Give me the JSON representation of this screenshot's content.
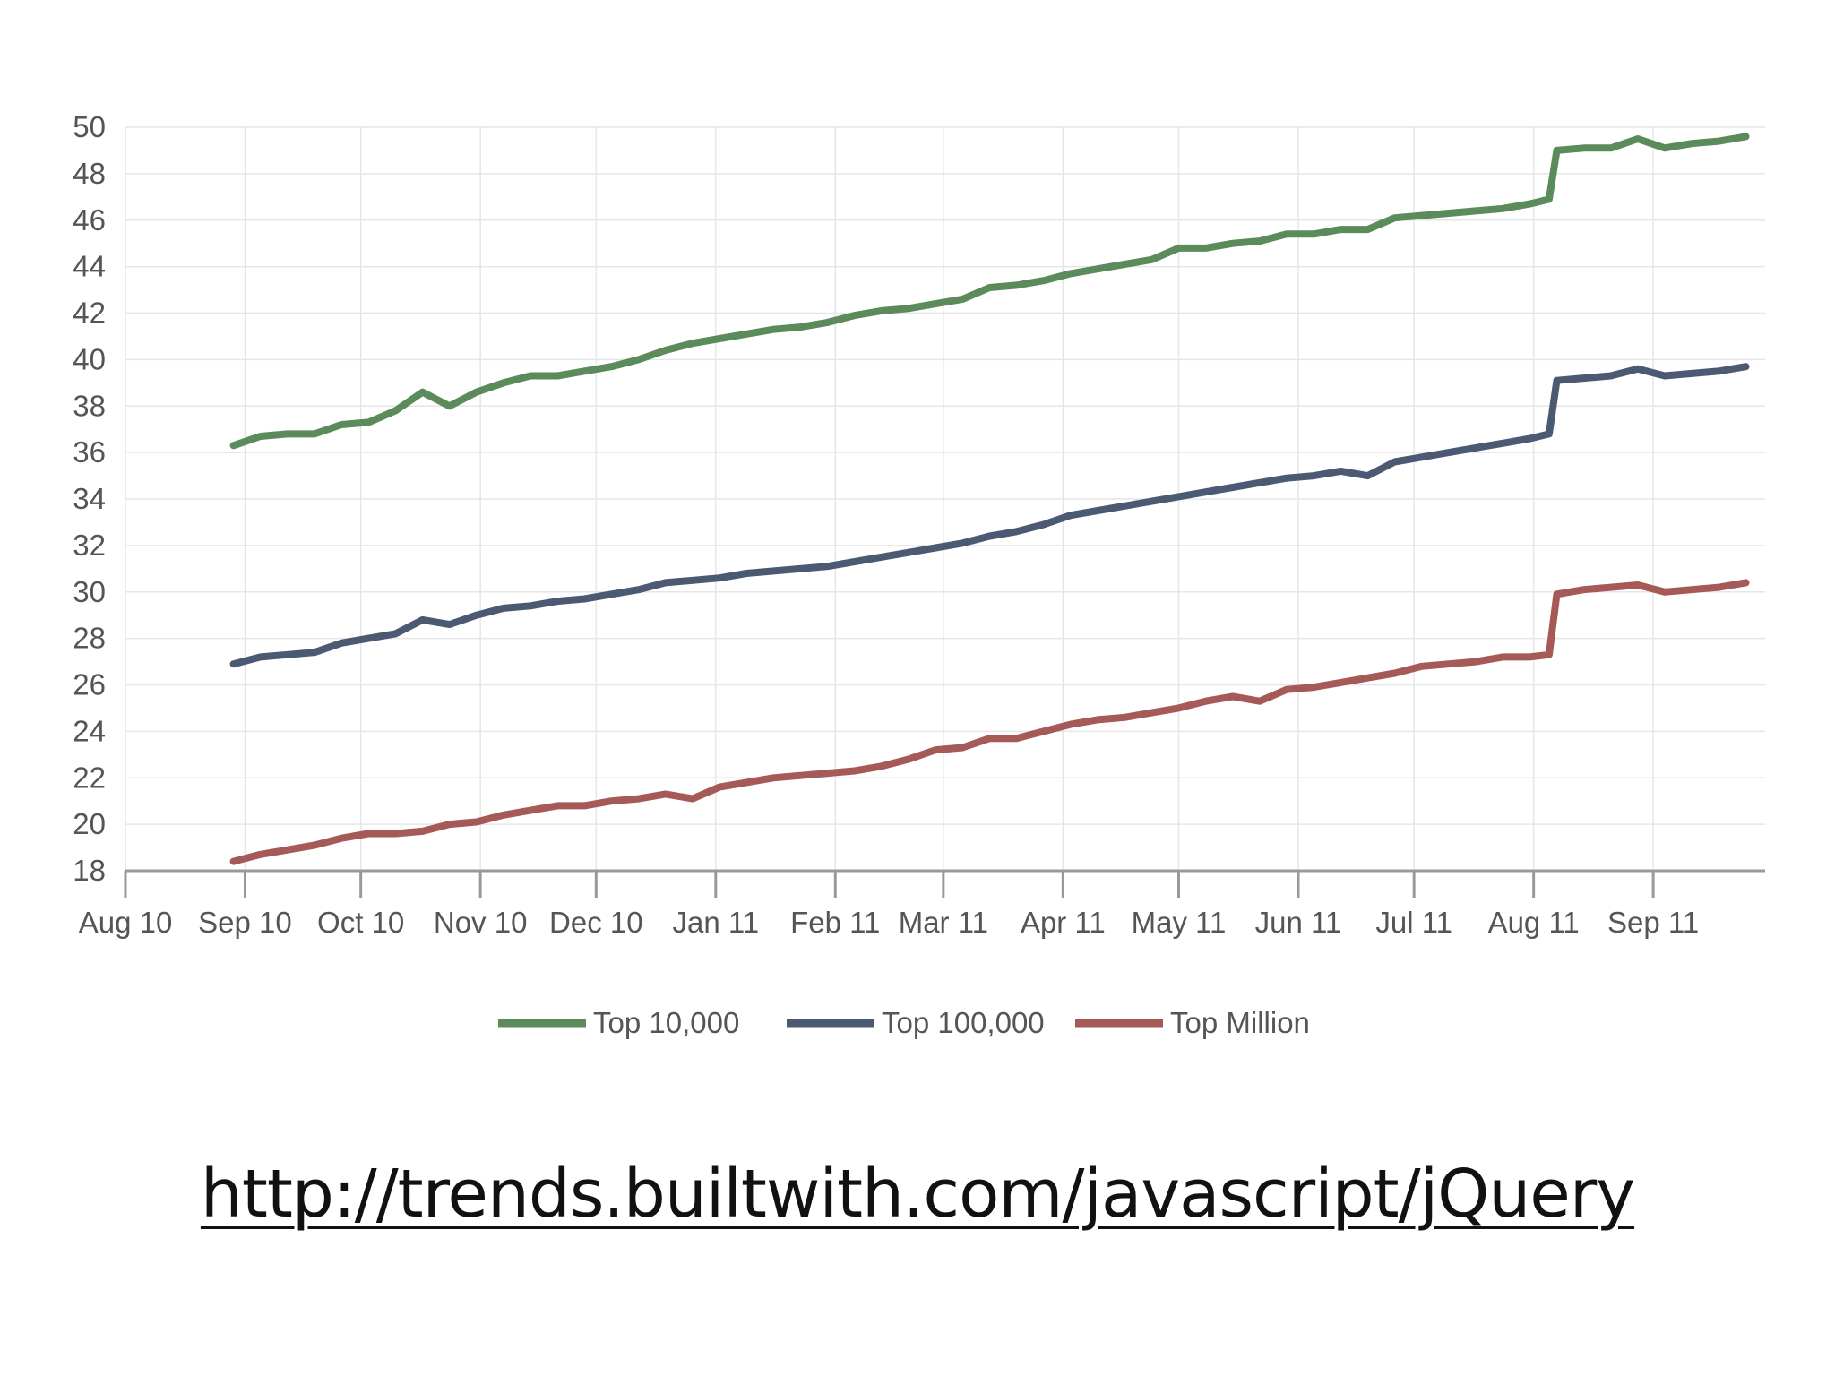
{
  "chart_data": {
    "type": "line",
    "title": "",
    "xlabel": "",
    "ylabel": "",
    "ylim": [
      18,
      50
    ],
    "yticks": [
      18,
      20,
      22,
      24,
      26,
      28,
      30,
      32,
      34,
      36,
      38,
      40,
      42,
      44,
      46,
      48,
      50
    ],
    "xlim": [
      "2010-08-01",
      "2011-09-30"
    ],
    "xticks": [
      {
        "date": "2010-08-01",
        "label": "Aug 10"
      },
      {
        "date": "2010-09-01",
        "label": "Sep 10"
      },
      {
        "date": "2010-10-01",
        "label": "Oct 10"
      },
      {
        "date": "2010-11-01",
        "label": "Nov 10"
      },
      {
        "date": "2010-12-01",
        "label": "Dec 10"
      },
      {
        "date": "2011-01-01",
        "label": "Jan 11"
      },
      {
        "date": "2011-02-01",
        "label": "Feb 11"
      },
      {
        "date": "2011-03-01",
        "label": "Mar 11"
      },
      {
        "date": "2011-04-01",
        "label": "Apr 11"
      },
      {
        "date": "2011-05-01",
        "label": "May 11"
      },
      {
        "date": "2011-06-01",
        "label": "Jun 11"
      },
      {
        "date": "2011-07-01",
        "label": "Jul 11"
      },
      {
        "date": "2011-08-01",
        "label": "Aug 11"
      },
      {
        "date": "2011-09-01",
        "label": "Sep 11"
      }
    ],
    "grid": true,
    "legend_position": "bottom-center",
    "x": [
      "2010-08-29",
      "2010-09-05",
      "2010-09-12",
      "2010-09-19",
      "2010-09-26",
      "2010-10-03",
      "2010-10-10",
      "2010-10-17",
      "2010-10-24",
      "2010-10-31",
      "2010-11-07",
      "2010-11-14",
      "2010-11-21",
      "2010-11-28",
      "2010-12-05",
      "2010-12-12",
      "2010-12-19",
      "2010-12-26",
      "2011-01-02",
      "2011-01-09",
      "2011-01-16",
      "2011-01-23",
      "2011-01-30",
      "2011-02-06",
      "2011-02-13",
      "2011-02-20",
      "2011-02-27",
      "2011-03-06",
      "2011-03-13",
      "2011-03-20",
      "2011-03-27",
      "2011-04-03",
      "2011-04-10",
      "2011-04-17",
      "2011-04-24",
      "2011-05-01",
      "2011-05-08",
      "2011-05-15",
      "2011-05-22",
      "2011-05-29",
      "2011-06-05",
      "2011-06-12",
      "2011-06-19",
      "2011-06-26",
      "2011-07-03",
      "2011-07-10",
      "2011-07-17",
      "2011-07-24",
      "2011-07-31",
      "2011-08-05",
      "2011-08-07",
      "2011-08-14",
      "2011-08-21",
      "2011-08-28",
      "2011-09-04",
      "2011-09-11",
      "2011-09-18",
      "2011-09-25"
    ],
    "series": [
      {
        "name": "Top 10,000",
        "color": "#5b8a5b",
        "values": [
          36.3,
          36.7,
          36.8,
          36.8,
          37.2,
          37.3,
          37.8,
          38.6,
          38.0,
          38.6,
          39.0,
          39.3,
          39.3,
          39.5,
          39.7,
          40.0,
          40.4,
          40.7,
          40.9,
          41.1,
          41.3,
          41.4,
          41.6,
          41.9,
          42.1,
          42.2,
          42.4,
          42.6,
          43.1,
          43.2,
          43.4,
          43.7,
          43.9,
          44.1,
          44.3,
          44.8,
          44.8,
          45.0,
          45.1,
          45.4,
          45.4,
          45.6,
          45.6,
          46.1,
          46.2,
          46.3,
          46.4,
          46.5,
          46.7,
          46.9,
          49.0,
          49.1,
          49.1,
          49.5,
          49.1,
          49.3,
          49.4,
          49.6
        ]
      },
      {
        "name": "Top 100,000",
        "color": "#4b5a72",
        "values": [
          26.9,
          27.2,
          27.3,
          27.4,
          27.8,
          28.0,
          28.2,
          28.8,
          28.6,
          29.0,
          29.3,
          29.4,
          29.6,
          29.7,
          29.9,
          30.1,
          30.4,
          30.5,
          30.6,
          30.8,
          30.9,
          31.0,
          31.1,
          31.3,
          31.5,
          31.7,
          31.9,
          32.1,
          32.4,
          32.6,
          32.9,
          33.3,
          33.5,
          33.7,
          33.9,
          34.1,
          34.3,
          34.5,
          34.7,
          34.9,
          35.0,
          35.2,
          35.0,
          35.6,
          35.8,
          36.0,
          36.2,
          36.4,
          36.6,
          36.8,
          39.1,
          39.2,
          39.3,
          39.6,
          39.3,
          39.4,
          39.5,
          39.7
        ]
      },
      {
        "name": "Top Million",
        "color": "#a65a58",
        "values": [
          18.4,
          18.7,
          18.9,
          19.1,
          19.4,
          19.6,
          19.6,
          19.7,
          20.0,
          20.1,
          20.4,
          20.6,
          20.8,
          20.8,
          21.0,
          21.1,
          21.3,
          21.1,
          21.6,
          21.8,
          22.0,
          22.1,
          22.2,
          22.3,
          22.5,
          22.8,
          23.2,
          23.3,
          23.7,
          23.7,
          24.0,
          24.3,
          24.5,
          24.6,
          24.8,
          25.0,
          25.3,
          25.5,
          25.3,
          25.8,
          25.9,
          26.1,
          26.3,
          26.5,
          26.8,
          26.9,
          27.0,
          27.2,
          27.2,
          27.3,
          29.9,
          30.1,
          30.2,
          30.3,
          30.0,
          30.1,
          30.2,
          30.4
        ]
      }
    ]
  },
  "caption": {
    "link_text": "http://trends.builtwith.com/javascript/jQuery"
  }
}
